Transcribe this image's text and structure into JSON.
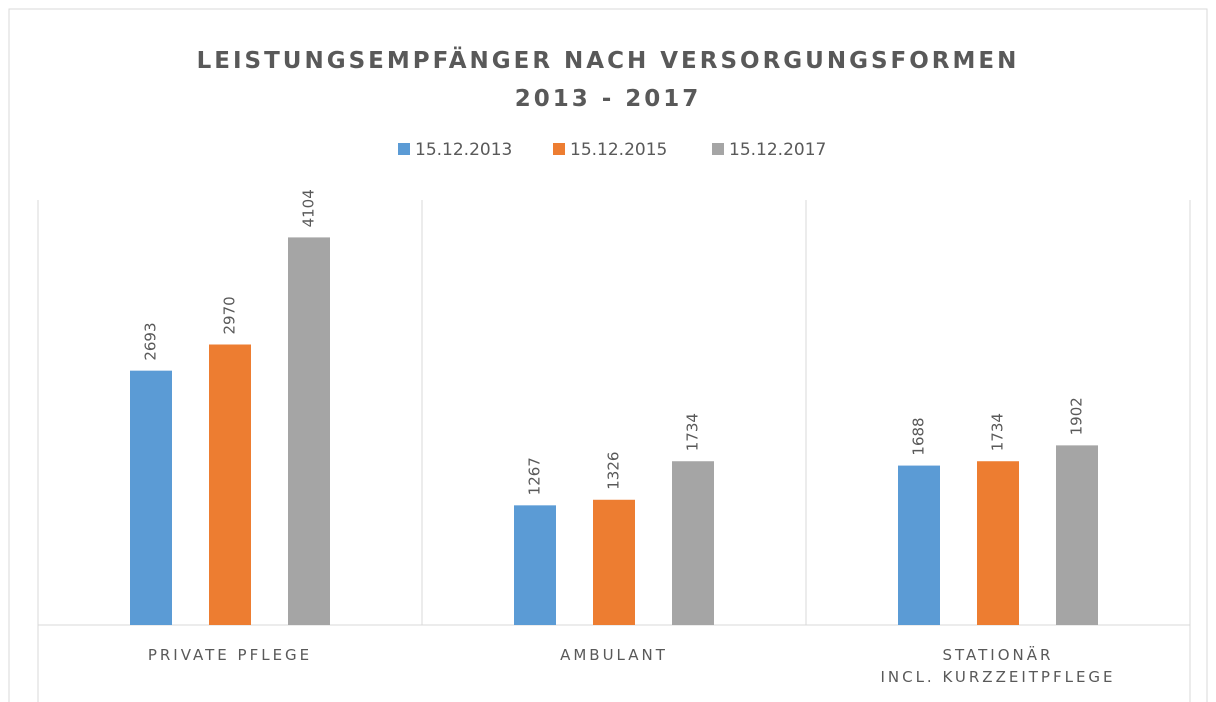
{
  "chart_data": {
    "type": "bar",
    "title": "LEISTUNGSEMPFÄNGER NACH VERSORGUNGSFORMEN\n2013 - 2017",
    "categories": [
      "PRIVATE PFLEGE",
      "AMBULANT",
      "STATIONÄR\nINCL. KURZZEITPFLEGE"
    ],
    "series": [
      {
        "name": "15.12.2013",
        "color": "#5b9bd5",
        "values": [
          2693,
          1267,
          1688
        ]
      },
      {
        "name": "15.12.2015",
        "color": "#ed7d31",
        "values": [
          2970,
          1326,
          1734
        ]
      },
      {
        "name": "15.12.2017",
        "color": "#a5a5a5",
        "values": [
          4104,
          1734,
          1902
        ]
      }
    ],
    "ylim": [
      0,
      4500
    ],
    "legend": "top"
  }
}
